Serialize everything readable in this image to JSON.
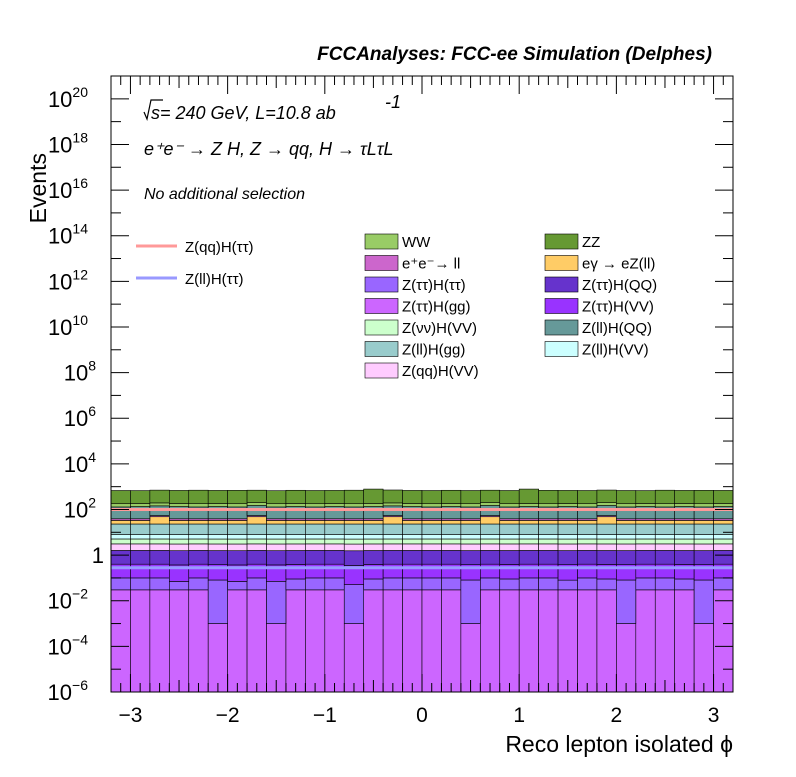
{
  "header": "FCCAnalyses: FCC-ee Simulation (Delphes)",
  "annotations": {
    "energy_prefix": "s",
    "energy_rest": " = 240 GeV, L=10.8 ab",
    "energy_exp": "-1",
    "process": "e⁺e⁻ → Z H, Z → qq, H → τLτL",
    "selection": "No additional selection"
  },
  "chart_data": {
    "type": "bar",
    "title": "",
    "xlabel": "Reco lepton isolated ϕ",
    "ylabel": "Events",
    "xlim": [
      -3.2,
      3.2
    ],
    "ylim": [
      1e-06,
      1e+21
    ],
    "log_y": true,
    "stacked": true,
    "x_ticks": [
      "−3",
      "−2",
      "−1",
      "0",
      "1",
      "2",
      "3"
    ],
    "y_ticks": [
      "10^-6",
      "10^-4",
      "10^-2",
      "1",
      "10^2",
      "10^4",
      "10^6",
      "10^8",
      "10^10",
      "10^12",
      "10^14",
      "10^16",
      "10^18",
      "10^20"
    ],
    "legend_position": "top-right",
    "n_bins": 32,
    "bin_edges_start": -3.2,
    "bin_width": 0.2,
    "stack_layers_bottom_to_top": [
      {
        "name": "Z(ττ)H(gg)",
        "color": "#cc66ff",
        "values": [
          0.03,
          0.03,
          0.03,
          0.03,
          0.03,
          0.001,
          0.03,
          0.03,
          0.001,
          0.03,
          0.03,
          0.03,
          0.001,
          0.03,
          0.03,
          0.03,
          0.03,
          0.03,
          0.001,
          0.03,
          0.03,
          0.03,
          0.03,
          0.03,
          0.03,
          0.03,
          0.001,
          0.03,
          0.03,
          0.03,
          0.001,
          0.03
        ]
      },
      {
        "name": "Z(ττ)H(ττ)",
        "color": "#9966ff",
        "values": [
          0.07,
          0.07,
          0.07,
          0.04,
          0.07,
          0.08,
          0.04,
          0.07,
          0.07,
          0.06,
          0.07,
          0.07,
          0.05,
          0.06,
          0.07,
          0.07,
          0.07,
          0.07,
          0.08,
          0.07,
          0.06,
          0.07,
          0.07,
          0.05,
          0.07,
          0.06,
          0.08,
          0.07,
          0.07,
          0.06,
          0.08,
          0.07
        ]
      },
      {
        "name": "Z(ττ)H(VV)",
        "color": "#9933ff",
        "values": [
          0.3,
          0.3,
          0.3,
          0.3,
          0.3,
          0.3,
          0.3,
          0.3,
          0.3,
          0.3,
          0.3,
          0.3,
          0.3,
          0.3,
          0.3,
          0.3,
          0.3,
          0.3,
          0.3,
          0.3,
          0.3,
          0.3,
          0.3,
          0.3,
          0.3,
          0.3,
          0.3,
          0.3,
          0.3,
          0.3,
          0.3,
          0.3
        ]
      },
      {
        "name": "Z(ττ)H(QQ)",
        "color": "#6633cc",
        "values": [
          1.2,
          1.2,
          1.2,
          1.2,
          1.2,
          1.2,
          1.2,
          1.2,
          1.2,
          1.2,
          1.2,
          1.2,
          1.2,
          1.2,
          1.2,
          1.2,
          1.2,
          1.2,
          1.2,
          1.2,
          1.2,
          1.2,
          1.2,
          1.2,
          1.2,
          1.2,
          1.2,
          1.2,
          1.2,
          1.2,
          1.2,
          1.2
        ]
      },
      {
        "name": "Z(qq)H(VV)",
        "color": "#ffccff",
        "values": [
          1.5,
          1.5,
          1.5,
          1.5,
          1.5,
          1.5,
          1.5,
          1.5,
          1.5,
          1.5,
          1.5,
          1.5,
          1.5,
          1.5,
          1.5,
          1.5,
          1.5,
          1.5,
          1.5,
          1.5,
          1.5,
          1.5,
          1.5,
          1.5,
          1.5,
          1.5,
          1.5,
          1.5,
          1.5,
          1.5,
          1.5,
          1.5
        ]
      },
      {
        "name": "Z(νν)H(VV)",
        "color": "#ccffcc",
        "values": [
          2,
          2,
          2,
          2,
          2,
          2,
          2,
          2,
          2,
          2,
          2,
          2,
          2,
          2,
          2,
          2,
          2,
          2,
          2,
          2,
          2,
          2,
          2,
          2,
          2,
          2,
          2,
          2,
          2,
          2,
          2,
          2
        ]
      },
      {
        "name": "Z(ll)H(VV)",
        "color": "#ccffff",
        "values": [
          3,
          3,
          3,
          3,
          3,
          3,
          3,
          3,
          3,
          3,
          3,
          3,
          3,
          3,
          3,
          3,
          3,
          3,
          3,
          3,
          3,
          3,
          3,
          3,
          3,
          3,
          3,
          3,
          3,
          3,
          3,
          3
        ]
      },
      {
        "name": "Z(ll)H(gg)",
        "color": "#99cccc",
        "values": [
          15,
          15,
          15,
          15,
          15,
          15,
          15,
          15,
          15,
          15,
          15,
          15,
          15,
          15,
          15,
          15,
          15,
          15,
          15,
          15,
          15,
          15,
          15,
          15,
          15,
          15,
          15,
          15,
          15,
          15,
          15,
          15
        ]
      },
      {
        "name": "eγ → eZ(ll)",
        "color": "#ffcc66",
        "values": [
          10,
          10,
          25,
          10,
          10,
          10,
          10,
          25,
          10,
          10,
          10,
          10,
          10,
          10,
          25,
          10,
          10,
          10,
          10,
          25,
          10,
          10,
          10,
          10,
          10,
          25,
          10,
          10,
          10,
          10,
          10,
          10
        ]
      },
      {
        "name": "e⁺e⁻→ ll",
        "color": "#cc66cc",
        "values": [
          6,
          6,
          6,
          6,
          6,
          6,
          6,
          6,
          6,
          6,
          6,
          6,
          6,
          6,
          6,
          6,
          6,
          6,
          6,
          6,
          6,
          6,
          6,
          6,
          6,
          6,
          6,
          6,
          6,
          6,
          6,
          6
        ]
      },
      {
        "name": "Z(ll)H(QQ)",
        "color": "#669999",
        "values": [
          90,
          95,
          90,
          95,
          90,
          95,
          90,
          95,
          90,
          95,
          90,
          95,
          90,
          95,
          90,
          95,
          90,
          95,
          90,
          95,
          90,
          95,
          90,
          95,
          90,
          95,
          90,
          95,
          90,
          95,
          90,
          95
        ]
      },
      {
        "name": "WW",
        "color": "#99cc66",
        "values": [
          50,
          50,
          50,
          50,
          50,
          50,
          50,
          50,
          50,
          50,
          50,
          50,
          50,
          50,
          50,
          50,
          50,
          50,
          50,
          50,
          50,
          50,
          50,
          50,
          50,
          50,
          50,
          50,
          50,
          50,
          50,
          50
        ]
      },
      {
        "name": "ZZ",
        "color": "#669933",
        "values": [
          500,
          490,
          510,
          500,
          520,
          500,
          510,
          500,
          490,
          510,
          500,
          500,
          520,
          600,
          520,
          500,
          500,
          510,
          500,
          500,
          500,
          600,
          510,
          500,
          500,
          510,
          500,
          490,
          520,
          500,
          510,
          500
        ]
      }
    ],
    "overlay_lines": [
      {
        "name": "Z(qq)H(ττ)",
        "color": "#ff9999",
        "value": 100
      },
      {
        "name": "Z(ll)H(ττ)",
        "color": "#9999ff",
        "value": 0.28
      }
    ],
    "legend_columns": [
      [
        "WW",
        "e⁺e⁻→ ll",
        "Z(ττ)H(ττ)",
        "Z(ττ)H(gg)",
        "Z(νν)H(VV)",
        "Z(ll)H(gg)",
        "Z(qq)H(VV)"
      ],
      [
        "ZZ",
        "eγ → eZ(ll)",
        "Z(ττ)H(QQ)",
        "Z(ττ)H(VV)",
        "Z(ll)H(QQ)",
        "Z(ll)H(VV)"
      ]
    ]
  }
}
